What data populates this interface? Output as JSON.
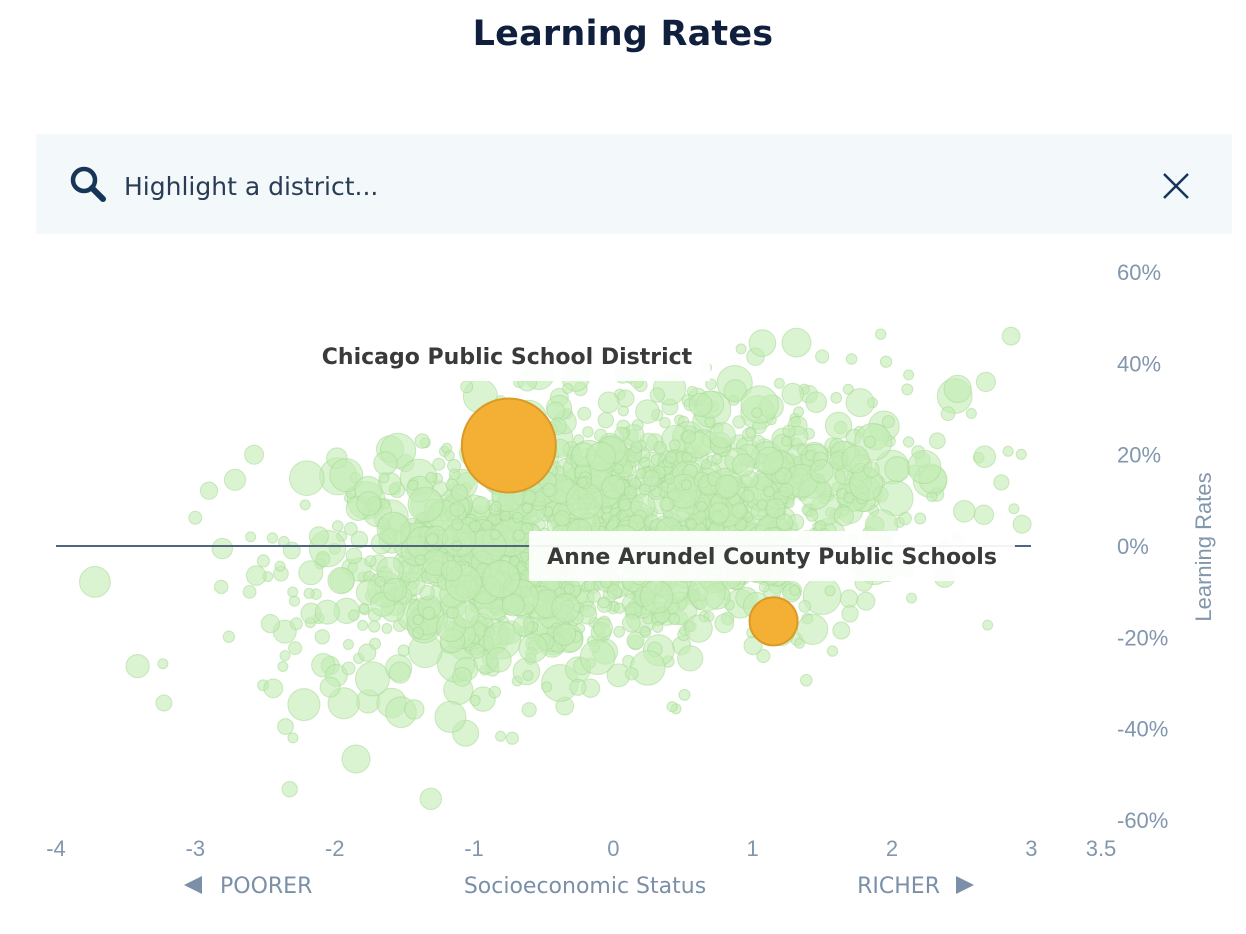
{
  "page": {
    "title": "Learning Rates"
  },
  "search": {
    "placeholder": "Highlight a district..."
  },
  "icons": {
    "search": "search-icon",
    "close": "close-icon"
  },
  "colors": {
    "background_points": "#c4ecb5",
    "background_points_stroke": "#a6d993",
    "highlight": "#f4b034",
    "highlight_stroke": "#d99a26",
    "reference_line": "#52657f",
    "axis_text": "#8296ad"
  },
  "chart_data": {
    "type": "scatter",
    "title": "Learning Rates",
    "xlabel": "Socioeconomic Status",
    "ylabel": "Learning Rates",
    "x_direction_labels": {
      "left": "POORER",
      "right": "RICHER"
    },
    "x_ticks": [
      "-4",
      "-3",
      "-2",
      "-1",
      "0",
      "1",
      "2",
      "3",
      "3.5"
    ],
    "y_ticks": [
      "60%",
      "40%",
      "20%",
      "0%",
      "-20%",
      "-40%",
      "-60%"
    ],
    "xlim": [
      -4,
      3.5
    ],
    "ylim": [
      -0.6,
      0.6
    ],
    "reference_line_y": 0,
    "grid": false,
    "background_points_description": "many districts, light green bubbles sized by enrollment, broad positive trend",
    "highlighted": [
      {
        "name": "Chicago Public School District",
        "x": -0.75,
        "y": 0.22,
        "size": "large"
      },
      {
        "name": "Anne Arundel County Public Schools",
        "x": 1.15,
        "y": -0.165,
        "size": "medium"
      }
    ]
  }
}
